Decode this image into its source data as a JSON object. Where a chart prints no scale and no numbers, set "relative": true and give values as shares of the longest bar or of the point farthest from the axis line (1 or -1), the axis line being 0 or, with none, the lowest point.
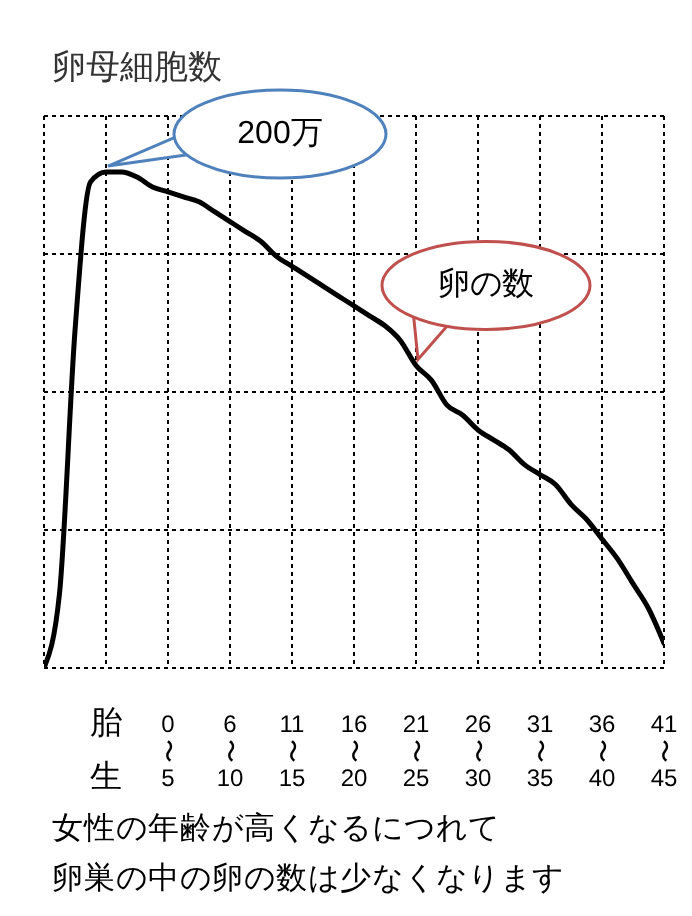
{
  "chart_data": {
    "type": "line",
    "title": "卵母細胞数",
    "relative": true,
    "grid": true,
    "categories": [
      null,
      null,
      null,
      null,
      "胎生",
      null,
      null,
      null,
      "0〜5",
      null,
      null,
      null,
      "6〜10",
      null,
      null,
      null,
      "11〜15",
      null,
      null,
      null,
      "16〜20",
      null,
      null,
      null,
      "21〜25",
      null,
      null,
      null,
      "26〜30",
      null,
      null,
      null,
      "31〜35",
      null,
      null,
      null,
      "36〜40",
      null,
      null,
      null,
      "41〜45"
    ],
    "series": [
      {
        "color": "#000000",
        "values": [
          0,
          0.15,
          0.68,
          0.98,
          1,
          1,
          0.99,
          0.97,
          0.96,
          0.95,
          0.94,
          0.92,
          0.9,
          0.88,
          0.86,
          0.83,
          0.81,
          0.79,
          0.77,
          0.75,
          0.73,
          0.71,
          0.69,
          0.66,
          0.61,
          0.58,
          0.53,
          0.51,
          0.48,
          0.46,
          0.44,
          0.41,
          0.39,
          0.37,
          0.33,
          0.3,
          0.26,
          0.22,
          0.17,
          0.12,
          0.05
        ]
      }
    ],
    "annotations": [
      {
        "text": "200万",
        "x": "胎生",
        "y": 1
      },
      {
        "text": "卵の数",
        "x": "21〜25",
        "y": 0.61
      },
      "女性の年齢が高くなるにつれて",
      "卵巣の中の卵の数は少なくなります"
    ]
  }
}
